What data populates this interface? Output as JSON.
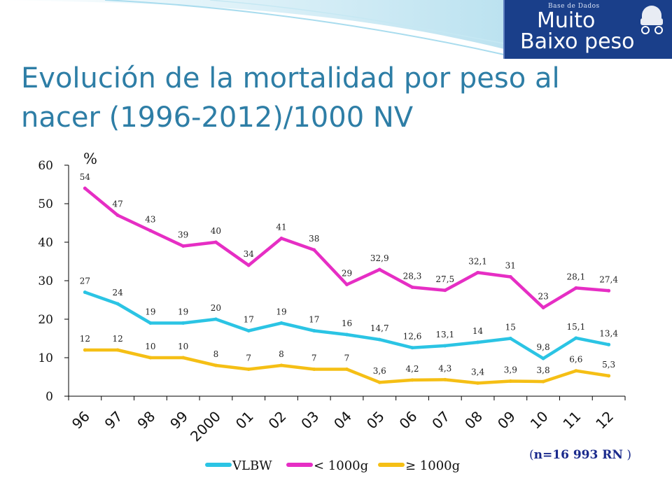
{
  "title": "Evolución de la mortalidad por peso al nacer (1996-2012)/1000 NV",
  "logo": {
    "small": "Base de Dados",
    "line1": "Muito",
    "line2": "Baixo peso"
  },
  "note": {
    "open": "(",
    "text": "n=16 993 RN",
    "close": ")"
  },
  "chart_data": {
    "type": "line",
    "ylabel": "%",
    "ylim": [
      0,
      60
    ],
    "yticks": [
      "0",
      "10",
      "20",
      "30",
      "40",
      "50",
      "60"
    ],
    "categories": [
      "96",
      "97",
      "98",
      "99",
      "2000",
      "01",
      "02",
      "03",
      "04",
      "05",
      "06",
      "07",
      "08",
      "09",
      "10",
      "11",
      "12"
    ],
    "legend_position": "bottom",
    "series": [
      {
        "name": "VLBW",
        "color": "#2bc4e4",
        "values": [
          27,
          24,
          19,
          19,
          20,
          17,
          19,
          17,
          16,
          14.7,
          12.6,
          13.1,
          14,
          15,
          9.8,
          15.1,
          13.4
        ],
        "labels": [
          "27",
          "24",
          "19",
          "19",
          "20",
          "17",
          "19",
          "17",
          "16",
          "14,7",
          "12,6",
          "13,1",
          "14",
          "15",
          "9,8",
          "15,1",
          "13,4"
        ]
      },
      {
        "name": "< 1000g",
        "color": "#e62ec4",
        "values": [
          54,
          47,
          43,
          39,
          40,
          34,
          41,
          38,
          29,
          32.9,
          28.3,
          27.5,
          32.1,
          31,
          23,
          28.1,
          27.4
        ],
        "labels": [
          "54",
          "47",
          "43",
          "39",
          "40",
          "34",
          "41",
          "38",
          "29",
          "32,9",
          "28,3",
          "27,5",
          "32,1",
          "31",
          "23",
          "28,1",
          "27,4"
        ]
      },
      {
        "name": "≥ 1000g",
        "color": "#f5bf15",
        "values": [
          12,
          12,
          10,
          10,
          8,
          7,
          8,
          7,
          7,
          3.6,
          4.2,
          4.3,
          3.4,
          3.9,
          3.8,
          6.6,
          5.3
        ],
        "labels": [
          "12",
          "12",
          "10",
          "10",
          "8",
          "7",
          "8",
          "7",
          "7",
          "3,6",
          "4,2",
          "4,3",
          "3,4",
          "3,9",
          "3,8",
          "6,6",
          "5,3"
        ]
      }
    ]
  }
}
